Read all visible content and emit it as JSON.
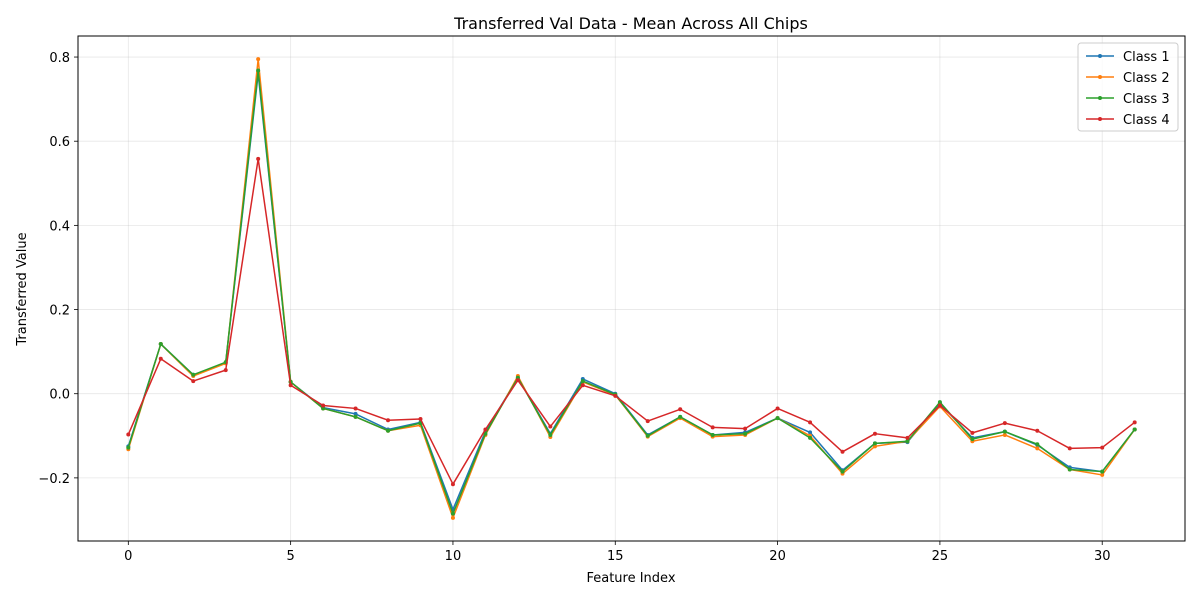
{
  "chart_data": {
    "type": "line",
    "title": "Transferred Val Data - Mean Across All Chips",
    "xlabel": "Feature Index",
    "ylabel": "Transferred Value",
    "xlim": [
      -1.55,
      32.55
    ],
    "ylim": [
      -0.35,
      0.85
    ],
    "xticks": [
      0,
      5,
      10,
      15,
      20,
      25,
      30
    ],
    "yticks": [
      -0.2,
      0.0,
      0.2,
      0.4,
      0.6,
      0.8
    ],
    "grid": true,
    "legend_position": "top-right",
    "x": [
      0,
      1,
      2,
      3,
      4,
      5,
      6,
      7,
      8,
      9,
      10,
      11,
      12,
      13,
      14,
      15,
      16,
      17,
      18,
      19,
      20,
      21,
      22,
      23,
      24,
      25,
      26,
      27,
      28,
      29,
      30,
      31
    ],
    "series": [
      {
        "name": "Class 1",
        "color": "#1f77b4",
        "values": [
          -0.125,
          0.118,
          0.045,
          0.073,
          0.76,
          0.028,
          -0.033,
          -0.048,
          -0.085,
          -0.068,
          -0.275,
          -0.09,
          0.038,
          -0.095,
          0.035,
          0.0,
          -0.098,
          -0.055,
          -0.098,
          -0.092,
          -0.058,
          -0.092,
          -0.182,
          -0.118,
          -0.115,
          -0.023,
          -0.105,
          -0.09,
          -0.122,
          -0.175,
          -0.185,
          -0.085
        ]
      },
      {
        "name": "Class 2",
        "color": "#ff7f0e",
        "values": [
          -0.132,
          0.118,
          0.042,
          0.072,
          0.795,
          0.028,
          -0.035,
          -0.055,
          -0.088,
          -0.075,
          -0.295,
          -0.098,
          0.042,
          -0.103,
          0.028,
          -0.003,
          -0.102,
          -0.058,
          -0.102,
          -0.098,
          -0.058,
          -0.1,
          -0.19,
          -0.125,
          -0.113,
          -0.03,
          -0.113,
          -0.098,
          -0.13,
          -0.18,
          -0.193,
          -0.085
        ]
      },
      {
        "name": "Class 3",
        "color": "#2ca02c",
        "values": [
          -0.128,
          0.118,
          0.045,
          0.075,
          0.768,
          0.028,
          -0.035,
          -0.055,
          -0.088,
          -0.07,
          -0.285,
          -0.095,
          0.038,
          -0.098,
          0.03,
          -0.002,
          -0.1,
          -0.055,
          -0.098,
          -0.095,
          -0.058,
          -0.105,
          -0.185,
          -0.118,
          -0.113,
          -0.02,
          -0.108,
          -0.09,
          -0.12,
          -0.18,
          -0.185,
          -0.085
        ]
      },
      {
        "name": "Class 4",
        "color": "#d62728",
        "values": [
          -0.097,
          0.083,
          0.03,
          0.056,
          0.558,
          0.02,
          -0.028,
          -0.035,
          -0.063,
          -0.06,
          -0.215,
          -0.085,
          0.032,
          -0.078,
          0.02,
          -0.005,
          -0.065,
          -0.037,
          -0.08,
          -0.083,
          -0.035,
          -0.068,
          -0.138,
          -0.095,
          -0.105,
          -0.028,
          -0.093,
          -0.07,
          -0.088,
          -0.13,
          -0.128,
          -0.068
        ]
      }
    ]
  }
}
